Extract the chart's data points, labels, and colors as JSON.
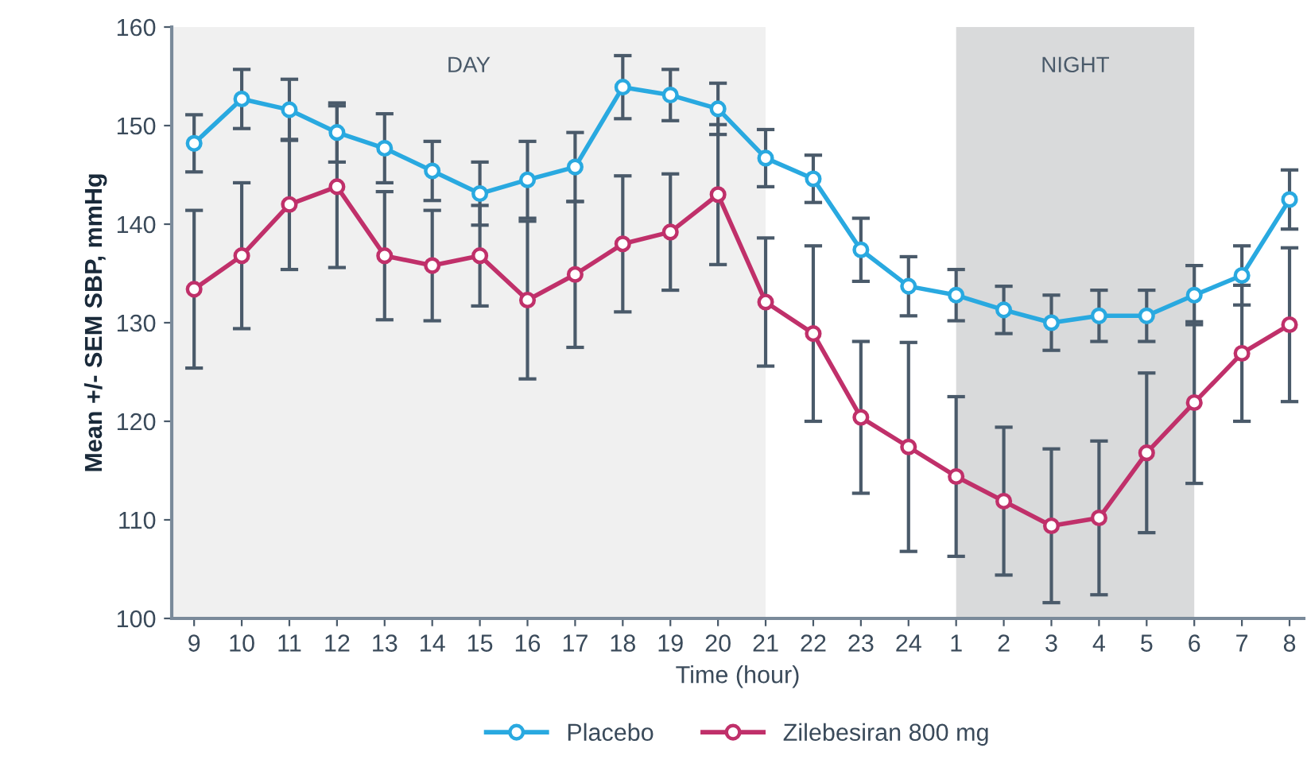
{
  "chart_data": {
    "type": "line",
    "xlabel": "Time (hour)",
    "ylabel": "Mean +/- SEM SBP, mmHg",
    "categories": [
      "9",
      "10",
      "11",
      "12",
      "13",
      "14",
      "15",
      "16",
      "17",
      "18",
      "19",
      "20",
      "21",
      "22",
      "23",
      "24",
      "1",
      "2",
      "3",
      "4",
      "5",
      "6",
      "7",
      "8"
    ],
    "series": [
      {
        "name": "Placebo",
        "color": "#29a9e0",
        "values": [
          148.2,
          152.7,
          151.6,
          149.3,
          147.7,
          145.4,
          143.1,
          144.5,
          145.8,
          153.9,
          153.1,
          151.7,
          146.7,
          144.6,
          137.4,
          133.7,
          132.8,
          131.3,
          130,
          130.7,
          130.7,
          132.8,
          134.8,
          142.5
        ],
        "errors": [
          2.9,
          3.0,
          3.1,
          3.0,
          3.5,
          3.0,
          3.2,
          3.9,
          3.5,
          3.2,
          2.6,
          2.6,
          2.9,
          2.4,
          3.2,
          3.0,
          2.6,
          2.4,
          2.8,
          2.6,
          2.6,
          3.0,
          3.0,
          3.0
        ]
      },
      {
        "name": "Zilebesiran 800 mg",
        "color": "#c0306a",
        "values": [
          133.4,
          136.8,
          142,
          143.8,
          136.8,
          135.8,
          136.8,
          132.3,
          134.9,
          138,
          139.2,
          143,
          132.1,
          128.9,
          120.4,
          117.4,
          114.4,
          111.9,
          109.4,
          110.2,
          116.8,
          121.9,
          126.9,
          129.8
        ],
        "errors": [
          8.0,
          7.4,
          6.6,
          8.2,
          6.5,
          5.6,
          5.1,
          8.0,
          7.4,
          6.9,
          5.9,
          7.1,
          6.5,
          8.9,
          7.7,
          10.6,
          8.1,
          7.5,
          7.8,
          7.8,
          8.1,
          8.2,
          6.9,
          7.8
        ]
      }
    ],
    "ylim": [
      100,
      160
    ],
    "yticks": [
      100,
      110,
      120,
      130,
      140,
      150,
      160
    ],
    "bands": [
      {
        "axis": "x",
        "from": "9",
        "to": "21",
        "label": "DAY",
        "color": "#f0f0f0"
      },
      {
        "axis": "x",
        "from": "1",
        "to": "6",
        "label": "NIGHT",
        "color": "#d9dadb"
      }
    ],
    "marker": "circle",
    "line_style": "solid",
    "grid": false,
    "legend": "bottom"
  }
}
